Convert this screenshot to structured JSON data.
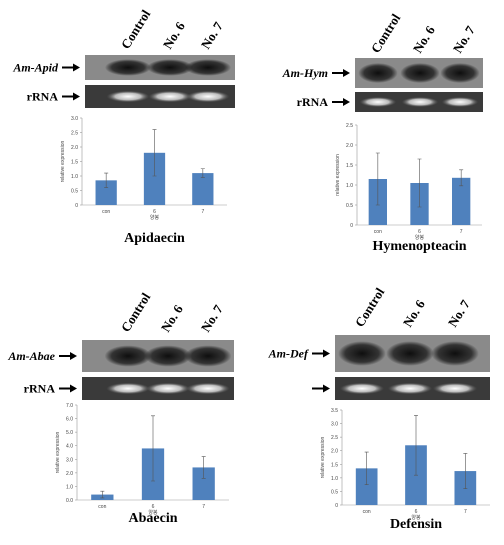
{
  "chart_data": [
    {
      "type": "bar",
      "title": "Apidaecin",
      "y_label": "relative expression",
      "x_label": "양봉",
      "categories": [
        "con",
        "6",
        "7"
      ],
      "values": [
        0.85,
        1.8,
        1.1
      ],
      "errors": [
        0.25,
        0.8,
        0.15
      ],
      "color": "#4f81bd",
      "ylim": [
        0,
        3
      ],
      "yticks": [
        0,
        0.5,
        {
          "value": 1,
          "label": "1.0"
        },
        1.5,
        {
          "value": 2,
          "label": "2.0"
        },
        2.5,
        {
          "value": 3,
          "label": "3.0"
        }
      ],
      "gel": {
        "lanes": [
          "Control",
          "No. 6",
          "No. 7"
        ],
        "gene": "Am-Apid",
        "reference": "rRNA"
      }
    },
    {
      "type": "bar",
      "title": "Hymenopteacin",
      "y_label": "relative expression",
      "x_label": "양봉",
      "categories": [
        "con",
        "6",
        "7"
      ],
      "values": [
        1.15,
        1.05,
        1.18
      ],
      "errors": [
        0.65,
        0.6,
        0.2
      ],
      "color": "#4f81bd",
      "ylim": [
        0,
        2.5
      ],
      "yticks": [
        0,
        0.5,
        {
          "value": 1,
          "label": "1.0"
        },
        1.5,
        {
          "value": 2,
          "label": "2.0"
        },
        2.5
      ],
      "gel": {
        "lanes": [
          "Control",
          "No. 6",
          "No. 7"
        ],
        "gene": "Am-Hym",
        "reference": "rRNA"
      }
    },
    {
      "type": "bar",
      "title": "Abaecin",
      "y_label": "relative expression",
      "x_label": "양봉",
      "categories": [
        "con",
        "6",
        "7"
      ],
      "values": [
        0.4,
        3.8,
        2.4
      ],
      "errors": [
        0.25,
        2.4,
        0.8
      ],
      "color": "#4f81bd",
      "ylim": [
        0,
        7
      ],
      "yticks": [
        {
          "value": 0,
          "label": "0.0"
        },
        {
          "value": 1,
          "label": "1.0"
        },
        {
          "value": 2,
          "label": "2.0"
        },
        {
          "value": 3,
          "label": "3.0"
        },
        {
          "value": 4,
          "label": "4.0"
        },
        {
          "value": 5,
          "label": "5.0"
        },
        {
          "value": 6,
          "label": "6.0"
        },
        {
          "value": 7,
          "label": "7.0"
        }
      ],
      "gel": {
        "lanes": [
          "Control",
          "No. 6",
          "No. 7"
        ],
        "gene": "Am-Abae",
        "reference": "rRNA"
      }
    },
    {
      "type": "bar",
      "title": "Defensin",
      "y_label": "relative expression",
      "x_label": "양봉",
      "categories": [
        "con",
        "6",
        "7"
      ],
      "values": [
        1.35,
        2.2,
        1.25
      ],
      "errors": [
        0.6,
        1.1,
        0.65
      ],
      "color": "#4f81bd",
      "ylim": [
        0,
        3.5
      ],
      "yticks": [
        0,
        0.5,
        {
          "value": 1,
          "label": "1.0"
        },
        1.5,
        {
          "value": 2,
          "label": "2.0"
        },
        2.5,
        {
          "value": 3,
          "label": "3.0"
        },
        3.5
      ],
      "gel": {
        "lanes": [
          "Control",
          "No. 6",
          "No. 7"
        ],
        "gene": "Am-Def"
      }
    }
  ]
}
